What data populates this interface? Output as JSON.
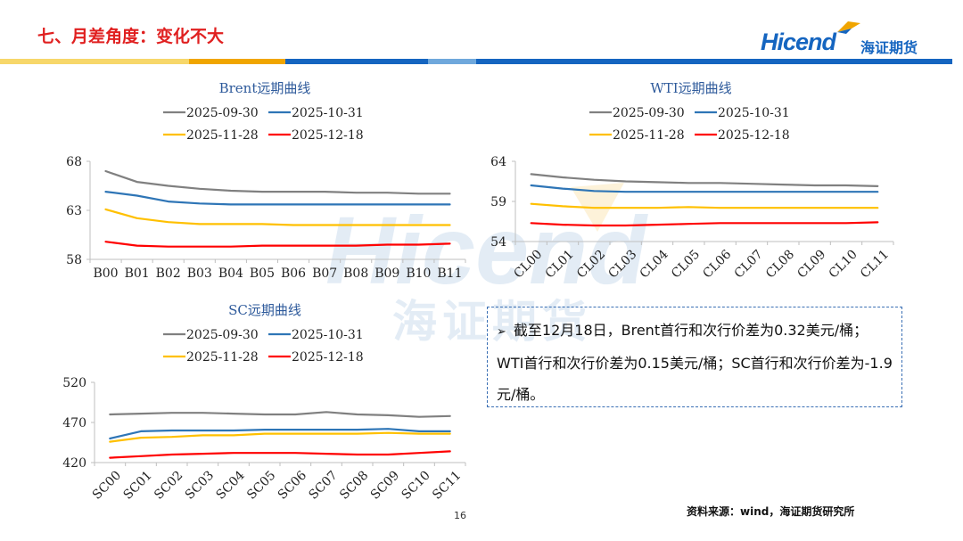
{
  "slide": {
    "title": "七、月差角度：变化不大",
    "page_number": "16",
    "source": "资料来源：wind，海证期货研究所"
  },
  "logo": {
    "en": "Hicend",
    "reg": "®",
    "cn": "海证期货"
  },
  "watermark": {
    "en": "Hicend",
    "cn": "海证期货"
  },
  "colors": {
    "title": "#e02020",
    "brand": "#1565c0",
    "grid_axis": "#bfbfbf",
    "stripe": [
      "#f7d76a",
      "#f0a500",
      "#1565c0",
      "#6fa8dc",
      "#1565c0"
    ]
  },
  "note": {
    "bullet": "➢",
    "text": "截至12月18日，Brent首行和次行价差为0.32美元/桶；WTI首行和次行价差为0.15美元/桶；SC首行和次行价差为-1.9元/桶。"
  },
  "chart_data": [
    {
      "type": "line",
      "title": "Brent远期曲线",
      "categories": [
        "B00",
        "B01",
        "B02",
        "B03",
        "B04",
        "B05",
        "B06",
        "B07",
        "B08",
        "B09",
        "B10",
        "B11"
      ],
      "yticks": [
        58,
        63,
        68
      ],
      "ylim": [
        58,
        68
      ],
      "xlabel": "",
      "ylabel": "",
      "legend_position": "top",
      "series": [
        {
          "name": "2025-09-30",
          "color": "#808080",
          "values": [
            67.0,
            65.9,
            65.5,
            65.2,
            65.0,
            64.9,
            64.9,
            64.9,
            64.8,
            64.8,
            64.7,
            64.7
          ]
        },
        {
          "name": "2025-10-31",
          "color": "#2e75b6",
          "values": [
            64.9,
            64.5,
            63.9,
            63.7,
            63.6,
            63.6,
            63.6,
            63.6,
            63.6,
            63.6,
            63.6,
            63.6
          ]
        },
        {
          "name": "2025-11-28",
          "color": "#ffc000",
          "values": [
            63.1,
            62.2,
            61.8,
            61.6,
            61.6,
            61.6,
            61.5,
            61.5,
            61.5,
            61.5,
            61.5,
            61.5
          ]
        },
        {
          "name": "2025-12-18",
          "color": "#ff0000",
          "values": [
            59.8,
            59.4,
            59.3,
            59.3,
            59.3,
            59.4,
            59.4,
            59.4,
            59.4,
            59.5,
            59.5,
            59.6
          ]
        }
      ]
    },
    {
      "type": "line",
      "title": "WTI远期曲线",
      "categories": [
        "CL00",
        "CL01",
        "CL02",
        "CL03",
        "CL04",
        "CL05",
        "CL06",
        "CL07",
        "CL08",
        "CL09",
        "CL10",
        "CL11"
      ],
      "yticks": [
        54,
        59,
        64
      ],
      "ylim": [
        54,
        64
      ],
      "xlabel": "",
      "ylabel": "",
      "legend_position": "top",
      "series": [
        {
          "name": "2025-09-30",
          "color": "#808080",
          "values": [
            62.4,
            62.0,
            61.7,
            61.5,
            61.4,
            61.3,
            61.3,
            61.2,
            61.1,
            61.0,
            61.0,
            60.9
          ]
        },
        {
          "name": "2025-10-31",
          "color": "#2e75b6",
          "values": [
            61.0,
            60.6,
            60.3,
            60.2,
            60.2,
            60.2,
            60.2,
            60.2,
            60.2,
            60.2,
            60.2,
            60.2
          ]
        },
        {
          "name": "2025-11-28",
          "color": "#ffc000",
          "values": [
            58.7,
            58.4,
            58.2,
            58.2,
            58.2,
            58.3,
            58.2,
            58.2,
            58.2,
            58.2,
            58.2,
            58.2
          ]
        },
        {
          "name": "2025-12-18",
          "color": "#ff0000",
          "values": [
            56.3,
            56.1,
            56.0,
            56.0,
            56.1,
            56.2,
            56.3,
            56.3,
            56.3,
            56.3,
            56.3,
            56.4
          ]
        }
      ]
    },
    {
      "type": "line",
      "title": "SC远期曲线",
      "categories": [
        "SC00",
        "SC01",
        "SC02",
        "SC03",
        "SC04",
        "SC05",
        "SC06",
        "SC07",
        "SC08",
        "SC09",
        "SC10",
        "SC11"
      ],
      "yticks": [
        420,
        470,
        520
      ],
      "ylim": [
        420,
        520
      ],
      "xlabel": "",
      "ylabel": "",
      "legend_position": "top",
      "series": [
        {
          "name": "2025-09-30",
          "color": "#808080",
          "values": [
            480,
            481,
            482,
            482,
            481,
            480,
            480,
            483,
            480,
            479,
            477,
            478
          ]
        },
        {
          "name": "2025-10-31",
          "color": "#2e75b6",
          "values": [
            450,
            459,
            460,
            460,
            460,
            461,
            461,
            461,
            461,
            462,
            459,
            459
          ]
        },
        {
          "name": "2025-11-28",
          "color": "#ffc000",
          "values": [
            446,
            451,
            452,
            454,
            454,
            456,
            456,
            456,
            456,
            457,
            456,
            456
          ]
        },
        {
          "name": "2025-12-18",
          "color": "#ff0000",
          "values": [
            426,
            428,
            430,
            431,
            432,
            432,
            432,
            431,
            430,
            430,
            432,
            434
          ]
        }
      ]
    }
  ]
}
